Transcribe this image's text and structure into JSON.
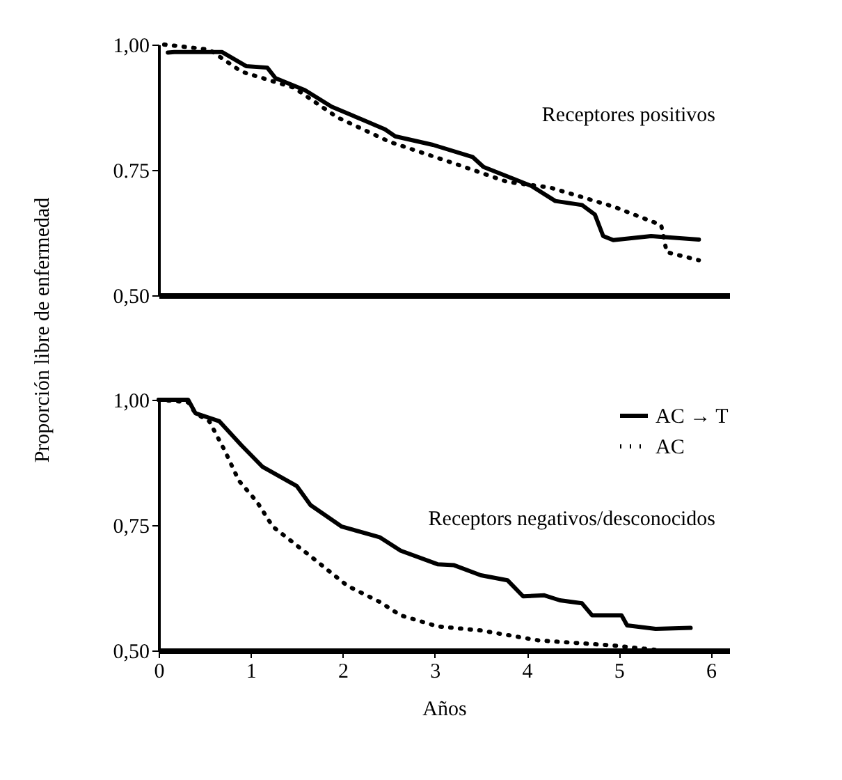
{
  "chart_data": [
    {
      "type": "line",
      "ylabel": "Proporción libre de enfermedad",
      "annotations": [
        "Receptores positivos"
      ],
      "xlim": [
        0,
        6.2
      ],
      "ylim": [
        0.5,
        1.0
      ],
      "yticks": [
        {
          "value": 0.5,
          "label": "0,50"
        },
        0.75,
        {
          "value": 1.0,
          "label": "1,00"
        }
      ],
      "tick_labels": "y",
      "grid": false,
      "marker": "none",
      "series": [
        {
          "color": "#000000",
          "line_style": "solid",
          "x": [
            0.1,
            0.17,
            0.69,
            0.95,
            1.18,
            1.27,
            1.59,
            1.88,
            2.23,
            2.46,
            2.57,
            2.98,
            3.41,
            3.53,
            4.05,
            4.31,
            4.6,
            4.74,
            4.83,
            4.94,
            5.35,
            5.87
          ],
          "values": [
            0.984,
            0.985,
            0.985,
            0.957,
            0.954,
            0.933,
            0.909,
            0.876,
            0.849,
            0.831,
            0.817,
            0.8,
            0.776,
            0.756,
            0.718,
            0.688,
            0.68,
            0.661,
            0.618,
            0.61,
            0.618,
            0.611
          ]
        },
        {
          "color": "#000000",
          "line_style": "dotted",
          "x": [
            0.06,
            0.55,
            0.9,
            1.47,
            1.94,
            2.51,
            3.21,
            3.79,
            4.25,
            4.94,
            5.46,
            5.52,
            5.87
          ],
          "values": [
            1.0,
            0.99,
            0.946,
            0.914,
            0.855,
            0.806,
            0.763,
            0.726,
            0.715,
            0.677,
            0.64,
            0.586,
            0.57
          ]
        }
      ]
    },
    {
      "type": "line",
      "xlabel": "Años",
      "annotations": [
        "Receptors negativos/desconocidos"
      ],
      "xlim": [
        0,
        6.2
      ],
      "ylim": [
        0.5,
        1.0
      ],
      "xticks": [
        0,
        1,
        2,
        3,
        4,
        5,
        6
      ],
      "yticks": [
        {
          "value": 0.5,
          "label": "0,50"
        },
        {
          "value": 0.75,
          "label": "0,75"
        },
        {
          "value": 1.0,
          "label": "1,00"
        }
      ],
      "grid": false,
      "marker": "none",
      "legend": "top right",
      "series": [
        {
          "name": "AC → T",
          "color": "#000000",
          "line_style": "solid",
          "x": [
            0,
            0.32,
            0.4,
            0.66,
            0.9,
            1.13,
            1.5,
            1.65,
            1.99,
            2.4,
            2.63,
            3.03,
            3.21,
            3.5,
            3.79,
            3.96,
            4.19,
            4.36,
            4.6,
            4.71,
            5.03,
            5.09,
            5.4,
            5.78
          ],
          "values": [
            1.0,
            1.0,
            0.973,
            0.957,
            0.909,
            0.866,
            0.828,
            0.79,
            0.747,
            0.726,
            0.699,
            0.672,
            0.67,
            0.65,
            0.64,
            0.608,
            0.61,
            0.6,
            0.594,
            0.57,
            0.57,
            0.55,
            0.543,
            0.545
          ]
        },
        {
          "name": "AC",
          "color": "#000000",
          "line_style": "dotted",
          "x": [
            0,
            0.32,
            0.4,
            0.55,
            0.72,
            0.87,
            1.07,
            1.24,
            1.65,
            2.05,
            2.4,
            2.63,
            3.03,
            3.5,
            4.13,
            4.94,
            5.46,
            5.98
          ],
          "values": [
            1.0,
            0.995,
            0.973,
            0.957,
            0.898,
            0.839,
            0.796,
            0.747,
            0.688,
            0.629,
            0.597,
            0.57,
            0.548,
            0.54,
            0.52,
            0.51,
            0.5,
            0.5
          ]
        }
      ]
    }
  ]
}
